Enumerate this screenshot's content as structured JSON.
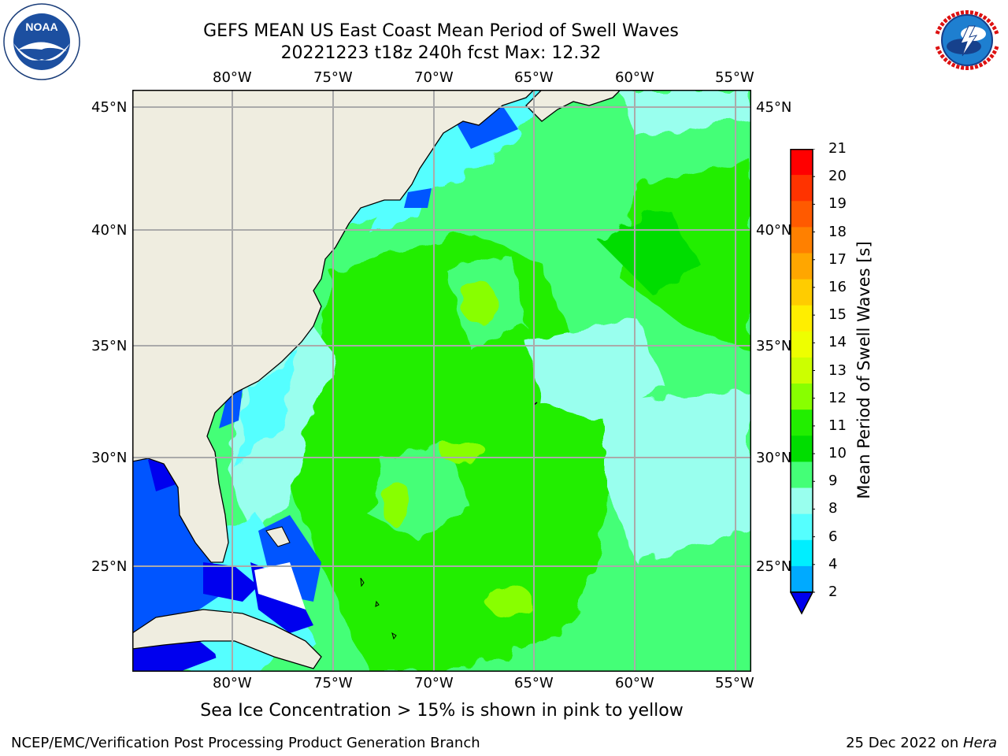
{
  "title_line1": "GEFS MEAN US East Coast Mean Period of Swell Waves",
  "title_line2": "20221223 t18z 240h fcst   Max: 12.32",
  "lon_labels": [
    "80°W",
    "75°W",
    "70°W",
    "65°W",
    "60°W",
    "55°W"
  ],
  "lat_labels": [
    "45°N",
    "40°N",
    "35°N",
    "30°N",
    "25°N"
  ],
  "colorbar": {
    "label": "Mean Period of Swell Waves [s]",
    "ticks": [
      "21",
      "20",
      "19",
      "18",
      "17",
      "16",
      "15",
      "14",
      "13",
      "12",
      "11",
      "10",
      "9",
      "8",
      "6",
      "4",
      "2"
    ],
    "colors": [
      "#ff0000",
      "#ff3300",
      "#ff5a00",
      "#ff8000",
      "#ffa600",
      "#ffcc00",
      "#ffee00",
      "#eeff00",
      "#ccff00",
      "#88ff00",
      "#22ee00",
      "#00dd00",
      "#44ff77",
      "#99ffee",
      "#55ffff",
      "#00eeff",
      "#00aaff",
      "#0055ff"
    ],
    "extend_color": "#0000ee"
  },
  "caption": "Sea Ice Concentration > 15% is shown in pink to yellow",
  "footer_left": "NCEP/EMC/Verification Post Processing Product Generation Branch",
  "footer_right_date": "25 Dec 2022 on ",
  "footer_right_machine": "Hera",
  "logos": {
    "left": {
      "name": "NOAA",
      "ring_text": "NATIONAL OCEANIC AND ATMOSPHERIC ADMINISTRATION",
      "bottom_text": "U.S. DEPARTMENT OF COMMERCE"
    },
    "right": {
      "ring_text": "NATIONAL WEATHER SERVICE"
    }
  }
}
